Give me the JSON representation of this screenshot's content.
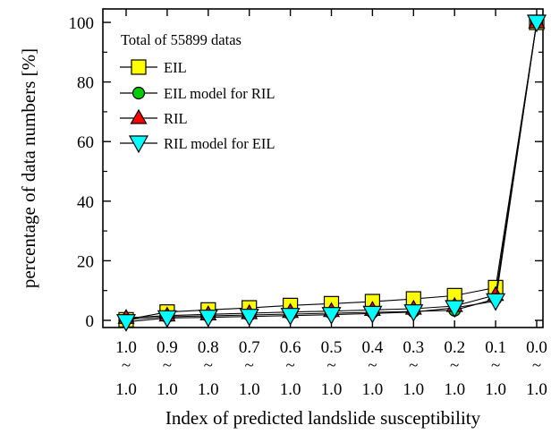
{
  "chart_data": {
    "type": "line",
    "xlabel": "Index of predicted landslide susceptibility",
    "ylabel": "percentage of data numbers [%]",
    "ylim": [
      0,
      100
    ],
    "yticks": [
      0,
      20,
      40,
      60,
      80,
      100
    ],
    "grid": false,
    "legend_position": "top-left",
    "annotation": "Total of 55899 datas",
    "categories": [
      {
        "top": "1.0",
        "mid": "~",
        "bottom": "1.0"
      },
      {
        "top": "0.9",
        "mid": "~",
        "bottom": "1.0"
      },
      {
        "top": "0.8",
        "mid": "~",
        "bottom": "1.0"
      },
      {
        "top": "0.7",
        "mid": "~",
        "bottom": "1.0"
      },
      {
        "top": "0.6",
        "mid": "~",
        "bottom": "1.0"
      },
      {
        "top": "0.5",
        "mid": "~",
        "bottom": "1.0"
      },
      {
        "top": "0.4",
        "mid": "~",
        "bottom": "1.0"
      },
      {
        "top": "0.3",
        "mid": "~",
        "bottom": "1.0"
      },
      {
        "top": "0.2",
        "mid": "~",
        "bottom": "1.0"
      },
      {
        "top": "0.1",
        "mid": "~",
        "bottom": "1.0"
      },
      {
        "top": "0.0",
        "mid": "~",
        "bottom": "1.0"
      }
    ],
    "series": [
      {
        "name": "EIL",
        "marker": "square",
        "color": "#ffff00",
        "values": [
          0.2,
          2.8,
          3.5,
          4.2,
          5.0,
          5.6,
          6.3,
          7.2,
          8.3,
          11.0,
          100
        ]
      },
      {
        "name": "EIL model for RIL",
        "marker": "circle",
        "color": "#00cc00",
        "values": [
          0.3,
          1.2,
          1.5,
          1.8,
          2.1,
          2.4,
          2.7,
          3.0,
          3.4,
          7.2,
          100
        ]
      },
      {
        "name": "RIL",
        "marker": "triangle-up",
        "color": "#ff0000",
        "values": [
          0.8,
          1.6,
          2.0,
          2.4,
          2.8,
          3.1,
          3.5,
          3.9,
          4.8,
          8.5,
          100
        ]
      },
      {
        "name": "RIL model for EIL",
        "marker": "triangle-down",
        "color": "#00ffff",
        "values": [
          -0.5,
          0.8,
          1.0,
          1.3,
          1.6,
          1.9,
          2.3,
          2.8,
          4.2,
          6.5,
          100
        ]
      }
    ]
  }
}
